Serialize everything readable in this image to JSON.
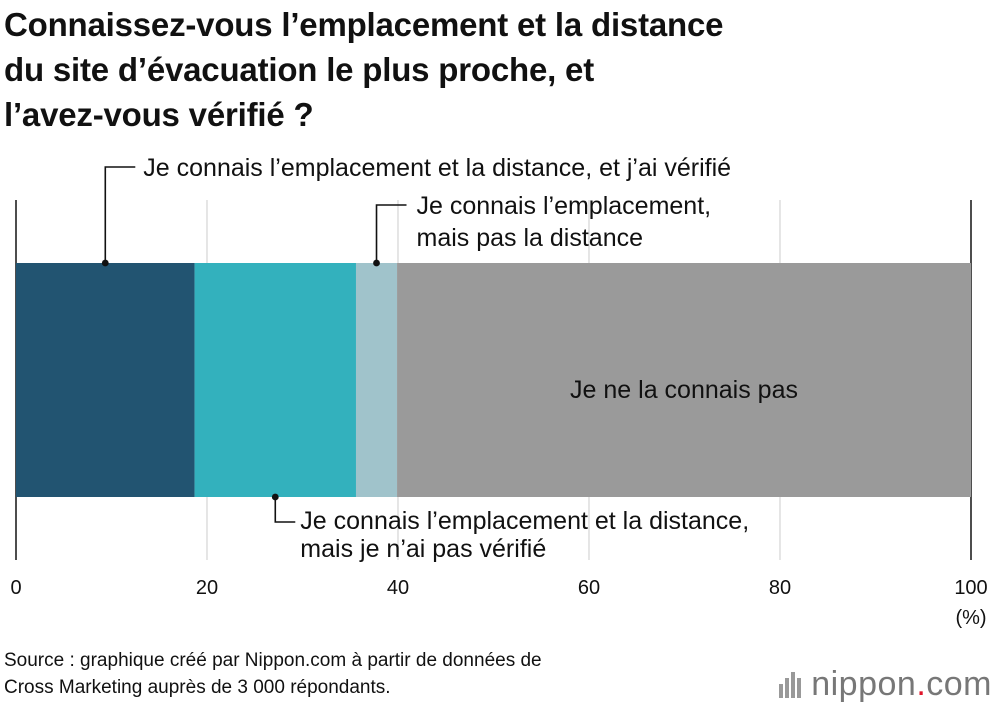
{
  "title": {
    "lines": [
      "Connaissez-vous l’emplacement et la distance",
      "du site d’évacuation le plus proche, et",
      "l’avez-vous vérifié ?"
    ]
  },
  "chart_data": {
    "type": "bar",
    "orientation": "horizontal",
    "stacked": true,
    "xlim": [
      0,
      100
    ],
    "xticks": [
      "0",
      "20",
      "40",
      "60",
      "80",
      "100"
    ],
    "xunit": "(%)",
    "grid": true,
    "series": [
      {
        "name": "Je connais l’emplacement et la distance, et j’ai vérifié",
        "lines": [
          "Je connais l’emplacement et la distance, et j’ai vérifié"
        ],
        "value": 18.7,
        "color": "#225471"
      },
      {
        "name": "Je connais l’emplacement et la distance, mais je n’ai pas vérifié",
        "lines": [
          "Je connais l’emplacement et la distance,",
          "mais je n’ai pas vérifié"
        ],
        "value": 16.9,
        "color": "#33b1bd"
      },
      {
        "name": "Je connais l’emplacement, mais pas la distance",
        "lines": [
          "Je connais l’emplacement,",
          "mais pas la distance"
        ],
        "value": 4.3,
        "color": "#a0c3cb"
      },
      {
        "name": "Je ne la connais pas",
        "lines": [
          "Je ne la connais pas"
        ],
        "value": 60.1,
        "color": "#9a9a9a"
      }
    ]
  },
  "source": {
    "lines": [
      "Source : graphique créé par Nippon.com à partir de données de",
      "Cross Marketing auprès de 3 000 répondants."
    ]
  },
  "logo": {
    "name": "nippon",
    "dot": ".",
    "tld": "com"
  }
}
